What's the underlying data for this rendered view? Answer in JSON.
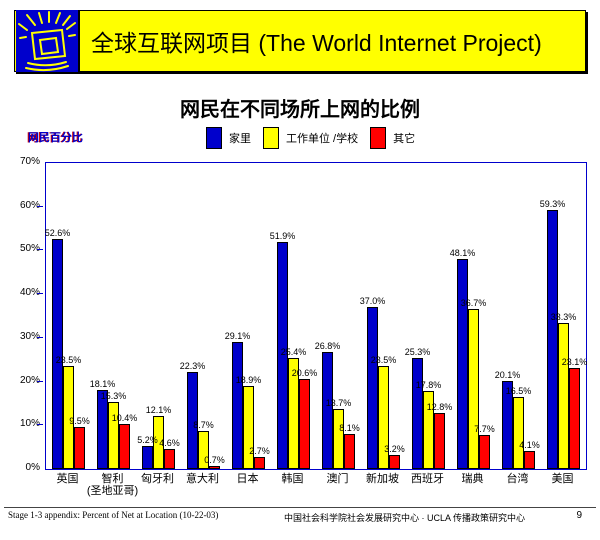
{
  "header": {
    "title": "全球互联网项目 (The World Internet Project)",
    "logo_icon": "crt-monitor-with-rays-icon",
    "banner_bg": "#ffff00",
    "logo_bg": "#0000cc",
    "logo_stroke": "#ffff00"
  },
  "chart_data": {
    "type": "bar",
    "title": "网民在不同场所上网的比例",
    "ylabel": "网民百分比",
    "xlabel": "",
    "ylim": [
      0,
      70
    ],
    "ytick_step": 10,
    "yticks": [
      "0%",
      "10%",
      "20%",
      "30%",
      "40%",
      "50%",
      "60%",
      "70%"
    ],
    "grid": false,
    "legend_position": "top",
    "frame_color": "#0000cc",
    "categories": [
      "英国",
      "智利",
      "匈牙利",
      "意大利",
      "日本",
      "韩国",
      "澳门",
      "新加坡",
      "西班牙",
      "瑞典",
      "台湾",
      "美国"
    ],
    "category_sublabels": [
      "",
      "(圣地亚哥)",
      "",
      "",
      "",
      "",
      "",
      "",
      "",
      "",
      "",
      ""
    ],
    "series": [
      {
        "name": "家里",
        "color": "#0000cc",
        "values": [
          52.6,
          18.1,
          5.2,
          22.3,
          29.1,
          51.9,
          26.8,
          37.0,
          25.3,
          48.1,
          20.1,
          59.3
        ]
      },
      {
        "name": "工作单位 /学校",
        "color": "#ffff00",
        "values": [
          23.5,
          15.3,
          12.1,
          8.7,
          18.9,
          25.4,
          13.7,
          23.5,
          17.8,
          36.7,
          16.5,
          33.3
        ]
      },
      {
        "name": "其它",
        "color": "#ff0000",
        "values": [
          9.5,
          10.4,
          4.6,
          0.7,
          2.7,
          20.6,
          8.1,
          3.2,
          12.8,
          7.7,
          4.1,
          23.1
        ]
      }
    ],
    "data_label_suffix": "%"
  },
  "footer": {
    "left": "Stage 1-3 appendix: Percent of Net at Location (10-22-03)",
    "center": "中国社会科学院社会发展研究中心 · UCLA 传播政策研究中心",
    "page": "9"
  }
}
